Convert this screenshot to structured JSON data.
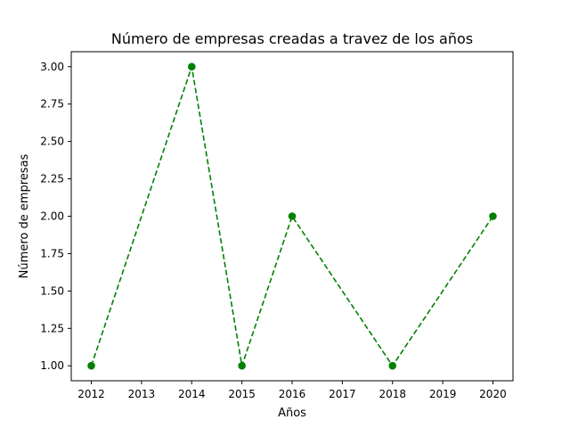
{
  "chart_data": {
    "type": "line",
    "title": "Número de empresas creadas a travez de los años",
    "xlabel": "Años",
    "ylabel": "Número de empresas",
    "x": [
      2012,
      2014,
      2015,
      2016,
      2018,
      2020
    ],
    "y": [
      1,
      3,
      1,
      2,
      1,
      2
    ],
    "xlim": [
      2011.6,
      2020.4
    ],
    "ylim": [
      0.9,
      3.1
    ],
    "x_ticks": [
      "2012",
      "2013",
      "2014",
      "2015",
      "2016",
      "2017",
      "2018",
      "2019",
      "2020"
    ],
    "y_ticks": [
      "1.00",
      "1.25",
      "1.50",
      "1.75",
      "2.00",
      "2.25",
      "2.50",
      "2.75",
      "3.00"
    ],
    "grid": false,
    "line_style": "dashed",
    "marker": "circle",
    "color": "#008000"
  }
}
